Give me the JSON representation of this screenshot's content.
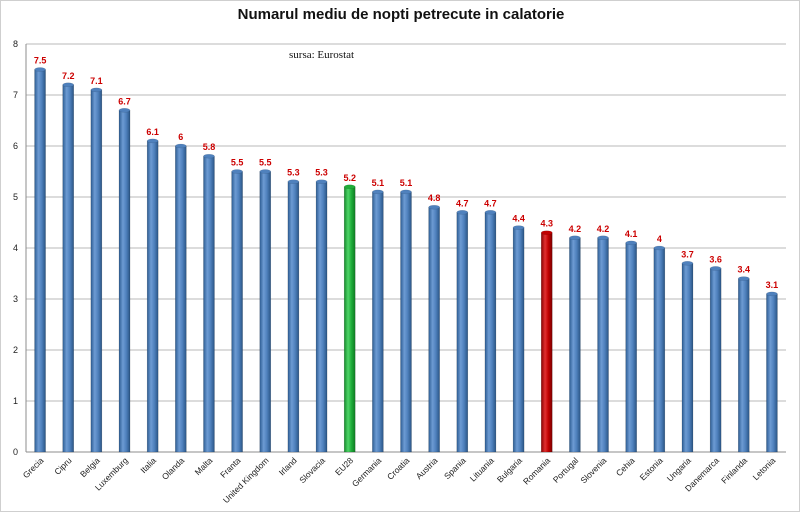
{
  "chart_data": {
    "type": "bar",
    "title": "Numarul mediu de nopti petrecute in calatorie",
    "source_note": "sursa: Eurostat",
    "xlabel": "",
    "ylabel": "",
    "ylim": [
      0,
      8
    ],
    "yticks": [
      0,
      1,
      2,
      3,
      4,
      5,
      6,
      7,
      8
    ],
    "grid": true,
    "legend": "none",
    "categories": [
      "Grecia",
      "Cipru",
      "Belgia",
      "Luxemburg",
      "Italia",
      "Olanda",
      "Malta",
      "Franta",
      "United Kingdom",
      "Irland",
      "Slovacia",
      "EU28",
      "Germania",
      "Croatia",
      "Austria",
      "Spania",
      "Lituania",
      "Bulgaria",
      "Romania",
      "Portugal",
      "Slovenia",
      "Cehia",
      "Estonia",
      "Ungaria",
      "Danemarca",
      "Finlanda",
      "Letonia"
    ],
    "values": [
      7.5,
      7.2,
      7.1,
      6.7,
      6.1,
      6,
      5.8,
      5.5,
      5.5,
      5.3,
      5.3,
      5.2,
      5.1,
      5.1,
      4.8,
      4.7,
      4.7,
      4.4,
      4.3,
      4.2,
      4.2,
      4.1,
      4,
      3.7,
      3.6,
      3.4,
      3.1
    ],
    "value_labels": [
      "7.5",
      "7.2",
      "7.1",
      "6.7",
      "6.1",
      "6",
      "5.8",
      "5.5",
      "5.5",
      "5.3",
      "5.3",
      "5.2",
      "5.1",
      "5.1",
      "4.8",
      "4.7",
      "4.7",
      "4.4",
      "4.3",
      "4.2",
      "4.2",
      "4.1",
      "4",
      "3.7",
      "3.6",
      "3.4",
      "3.1"
    ],
    "colors": {
      "default": "#4f81bd",
      "highlight_eu": "#1fae3a",
      "highlight_romania": "#c00000",
      "data_label": "#cc0000"
    },
    "highlights": {
      "EU28": "highlight_eu",
      "Romania": "highlight_romania"
    }
  }
}
